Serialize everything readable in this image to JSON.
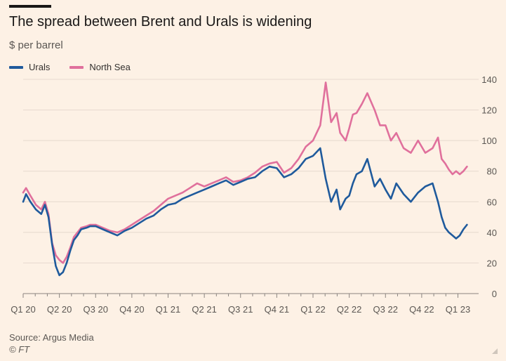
{
  "header": {
    "title": "The spread between Brent and Urals is widening",
    "subtitle": "$ per barrel"
  },
  "footer": {
    "source": "Source: Argus Media",
    "credit": "© FT"
  },
  "colors": {
    "urals": "#1f5a9c",
    "north_sea": "#e0709c",
    "grid": "#e6d9ce",
    "axis": "#8a8480"
  },
  "chart_data": {
    "type": "line",
    "title": "The spread between Brent and Urals is widening",
    "ylabel": "$ per barrel",
    "xlabel": "",
    "ylim": [
      0,
      140
    ],
    "yticks": [
      "0",
      "20",
      "40",
      "60",
      "80",
      "100",
      "120",
      "140"
    ],
    "xlim": [
      0,
      12.3
    ],
    "categories": [
      "Q1 20",
      "Q2 20",
      "Q3 20",
      "Q4 20",
      "Q1 21",
      "Q2 21",
      "Q3 21",
      "Q4 21",
      "Q1 22",
      "Q2 22",
      "Q3 22",
      "Q4 22",
      "Q1 23"
    ],
    "legend_position": "top-left",
    "grid": true,
    "series": [
      {
        "name": "Urals",
        "color": "#1f5a9c",
        "x": [
          0,
          0.08,
          0.2,
          0.35,
          0.5,
          0.6,
          0.7,
          0.8,
          0.9,
          1.0,
          1.1,
          1.2,
          1.3,
          1.4,
          1.5,
          1.6,
          1.75,
          1.85,
          2.0,
          2.2,
          2.4,
          2.6,
          2.8,
          3.0,
          3.2,
          3.4,
          3.6,
          3.8,
          4.0,
          4.2,
          4.4,
          4.6,
          4.8,
          5.0,
          5.2,
          5.4,
          5.6,
          5.8,
          6.0,
          6.2,
          6.4,
          6.6,
          6.8,
          7.0,
          7.2,
          7.4,
          7.6,
          7.8,
          8.0,
          8.2,
          8.35,
          8.5,
          8.65,
          8.75,
          8.9,
          9.0,
          9.1,
          9.2,
          9.35,
          9.5,
          9.7,
          9.85,
          10.0,
          10.15,
          10.3,
          10.5,
          10.7,
          10.9,
          11.1,
          11.3,
          11.45,
          11.55,
          11.65,
          11.75,
          11.85,
          11.95,
          12.05,
          12.15,
          12.25
        ],
        "values": [
          60,
          65,
          60,
          55,
          52,
          58,
          50,
          32,
          18,
          12,
          14,
          20,
          28,
          35,
          38,
          42,
          43,
          44,
          44,
          42,
          40,
          38,
          41,
          43,
          46,
          49,
          51,
          55,
          58,
          59,
          62,
          64,
          66,
          68,
          70,
          72,
          74,
          71,
          73,
          75,
          76,
          80,
          83,
          82,
          76,
          78,
          82,
          88,
          90,
          95,
          75,
          60,
          68,
          55,
          62,
          64,
          72,
          78,
          80,
          88,
          70,
          75,
          68,
          62,
          72,
          65,
          60,
          66,
          70,
          72,
          60,
          50,
          43,
          40,
          38,
          36,
          38,
          42,
          45
        ]
      },
      {
        "name": "North Sea",
        "color": "#e0709c",
        "x": [
          0,
          0.08,
          0.2,
          0.35,
          0.5,
          0.6,
          0.7,
          0.8,
          0.9,
          1.0,
          1.1,
          1.2,
          1.3,
          1.4,
          1.5,
          1.6,
          1.75,
          1.85,
          2.0,
          2.2,
          2.4,
          2.6,
          2.8,
          3.0,
          3.2,
          3.4,
          3.6,
          3.8,
          4.0,
          4.2,
          4.4,
          4.6,
          4.8,
          5.0,
          5.2,
          5.4,
          5.6,
          5.8,
          6.0,
          6.2,
          6.4,
          6.6,
          6.8,
          7.0,
          7.2,
          7.4,
          7.6,
          7.8,
          8.0,
          8.2,
          8.35,
          8.5,
          8.65,
          8.75,
          8.9,
          9.0,
          9.1,
          9.2,
          9.35,
          9.5,
          9.7,
          9.85,
          10.0,
          10.15,
          10.3,
          10.5,
          10.7,
          10.9,
          11.1,
          11.3,
          11.45,
          11.55,
          11.65,
          11.75,
          11.85,
          11.95,
          12.05,
          12.15,
          12.25
        ],
        "values": [
          66,
          69,
          64,
          58,
          55,
          60,
          52,
          33,
          25,
          22,
          20,
          24,
          30,
          37,
          40,
          43,
          44,
          45,
          45,
          43,
          41,
          40,
          42,
          45,
          48,
          51,
          54,
          58,
          62,
          64,
          66,
          69,
          72,
          70,
          72,
          74,
          76,
          73,
          74,
          76,
          79,
          83,
          85,
          86,
          79,
          82,
          88,
          96,
          100,
          110,
          138,
          112,
          118,
          105,
          100,
          108,
          117,
          118,
          124,
          131,
          120,
          110,
          110,
          100,
          105,
          95,
          92,
          100,
          92,
          95,
          102,
          88,
          85,
          81,
          78,
          80,
          78,
          80,
          83
        ]
      }
    ]
  }
}
